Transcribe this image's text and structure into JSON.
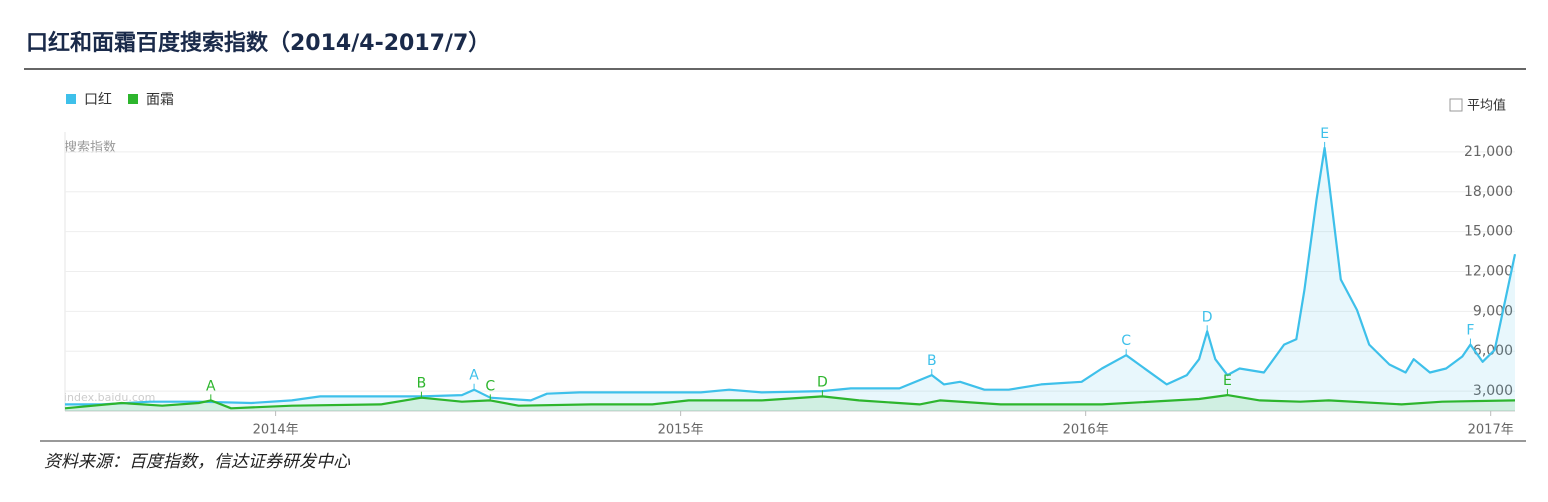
{
  "title": "口红和面霜百度搜索指数（2014/4-2017/7）",
  "source": "资料来源：百度指数，信达证券研发中心",
  "chart_data": {
    "type": "line",
    "y_axis_label": "搜索指数",
    "average_toggle": "平均值",
    "watermark": "index.baidu.com",
    "grid": true,
    "area": true,
    "xlim": [
      2013.48,
      2017.06
    ],
    "xticks": [
      {
        "value": 2014,
        "label": "2014年"
      },
      {
        "value": 2015,
        "label": "2015年"
      },
      {
        "value": 2016,
        "label": "2016年"
      },
      {
        "value": 2017,
        "label": "2017年"
      }
    ],
    "ylim": [
      1500,
      22500
    ],
    "yticks": [
      {
        "value": 3000,
        "label": "3,000"
      },
      {
        "value": 6000,
        "label": "6,000"
      },
      {
        "value": 9000,
        "label": "9,000"
      },
      {
        "value": 12000,
        "label": "12,000"
      },
      {
        "value": 15000,
        "label": "15,000"
      },
      {
        "value": 18000,
        "label": "18,000"
      },
      {
        "value": 21000,
        "label": "21,000"
      }
    ],
    "series": [
      {
        "name": "口红",
        "color": "#3ec0ea",
        "x": [
          2013.48,
          2013.57,
          2013.69,
          2013.81,
          2013.94,
          2014.04,
          2014.11,
          2014.23,
          2014.36,
          2014.46,
          2014.49,
          2014.53,
          2014.63,
          2014.67,
          2014.75,
          2014.93,
          2015.05,
          2015.12,
          2015.2,
          2015.35,
          2015.42,
          2015.54,
          2015.62,
          2015.65,
          2015.69,
          2015.75,
          2015.81,
          2015.89,
          2015.99,
          2016.04,
          2016.1,
          2016.15,
          2016.2,
          2016.25,
          2016.28,
          2016.3,
          2016.32,
          2016.35,
          2016.38,
          2016.44,
          2016.49,
          2016.52,
          2016.54,
          2016.57,
          2016.59,
          2016.6,
          2016.63,
          2016.67,
          2016.7,
          2016.75,
          2016.79,
          2016.81,
          2016.85,
          2016.89,
          2016.93,
          2016.95,
          2016.98,
          2017.01,
          2017.06
        ],
        "values": [
          2000,
          2000,
          2200,
          2200,
          2100,
          2300,
          2600,
          2600,
          2600,
          2700,
          3100,
          2500,
          2300,
          2800,
          2900,
          2900,
          2900,
          3100,
          2900,
          3000,
          3200,
          3200,
          4200,
          3500,
          3700,
          3100,
          3100,
          3500,
          3700,
          4700,
          5700,
          4600,
          3500,
          4200,
          5400,
          7500,
          5400,
          4200,
          4700,
          4400,
          6500,
          6900,
          10600,
          17400,
          21300,
          18900,
          11400,
          9100,
          6500,
          5000,
          4400,
          5400,
          4400,
          4700,
          5600,
          6500,
          5200,
          6100,
          13300
        ],
        "annotations": [
          {
            "text": "A",
            "x": 2014.49
          },
          {
            "text": "B",
            "x": 2015.62
          },
          {
            "text": "C",
            "x": 2016.1
          },
          {
            "text": "D",
            "x": 2016.3
          },
          {
            "text": "E",
            "x": 2016.59
          },
          {
            "text": "F",
            "x": 2016.95
          }
        ]
      },
      {
        "name": "面霜",
        "color": "#2db52d",
        "x": [
          2013.48,
          2013.62,
          2013.72,
          2013.81,
          2013.84,
          2013.89,
          2014.04,
          2014.26,
          2014.36,
          2014.46,
          2014.53,
          2014.6,
          2014.78,
          2014.93,
          2015.02,
          2015.2,
          2015.35,
          2015.44,
          2015.59,
          2015.64,
          2015.79,
          2016.04,
          2016.28,
          2016.35,
          2016.43,
          2016.53,
          2016.6,
          2016.78,
          2016.88,
          2017.06
        ],
        "values": [
          1700,
          2100,
          1900,
          2100,
          2300,
          1700,
          1900,
          2000,
          2500,
          2200,
          2300,
          1900,
          2000,
          2000,
          2300,
          2300,
          2600,
          2300,
          2000,
          2300,
          2000,
          2000,
          2400,
          2700,
          2300,
          2200,
          2300,
          2000,
          2200,
          2300
        ],
        "annotations": [
          {
            "text": "A",
            "x": 2013.84
          },
          {
            "text": "B",
            "x": 2014.36
          },
          {
            "text": "C",
            "x": 2014.53
          },
          {
            "text": "D",
            "x": 2015.35
          },
          {
            "text": "E",
            "x": 2016.35
          }
        ]
      }
    ]
  }
}
